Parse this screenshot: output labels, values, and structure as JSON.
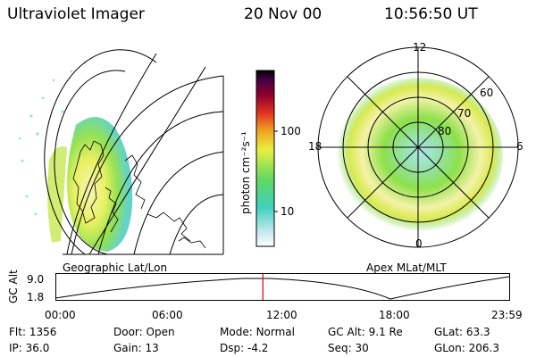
{
  "header": {
    "instrument": "Ultraviolet Imager",
    "date": "20 Nov 00",
    "time": "10:56:50 UT"
  },
  "colorbar": {
    "unit_label": "photon cm⁻²s⁻¹",
    "ticks": [
      "100",
      "10"
    ],
    "scale": "log"
  },
  "geo_panel": {
    "label": "Geographic Lat/Lon"
  },
  "polar_panel": {
    "label": "Apex MLat/MLT",
    "mlt_labels": [
      "12",
      "18",
      "6",
      "0"
    ],
    "mlat_labels": [
      "60",
      "70",
      "80"
    ]
  },
  "altitude_plot": {
    "axis_label": "GC Alt",
    "y_ticks": [
      "9.0",
      "1.8"
    ],
    "x_ticks": [
      "00:00",
      "06:00",
      "12:00",
      "18:00",
      "23:59"
    ],
    "current_time_marker_hours": 10.95,
    "marker_color": "#e00000"
  },
  "info": {
    "row1": [
      {
        "label": "Flt:",
        "value": "1356"
      },
      {
        "label": "Door:",
        "value": "Open"
      },
      {
        "label": "Mode:",
        "value": "Normal"
      },
      {
        "label": "GC Alt:",
        "value": "9.1 Re"
      },
      {
        "label": "GLat:",
        "value": "63.3"
      }
    ],
    "row2": [
      {
        "label": "IP:",
        "value": "36.0"
      },
      {
        "label": "Gain:",
        "value": "13"
      },
      {
        "label": "Dsp:",
        "value": "-4.2"
      },
      {
        "label": "Seq:",
        "value": "30"
      },
      {
        "label": "GLon:",
        "value": "206.3"
      }
    ]
  }
}
